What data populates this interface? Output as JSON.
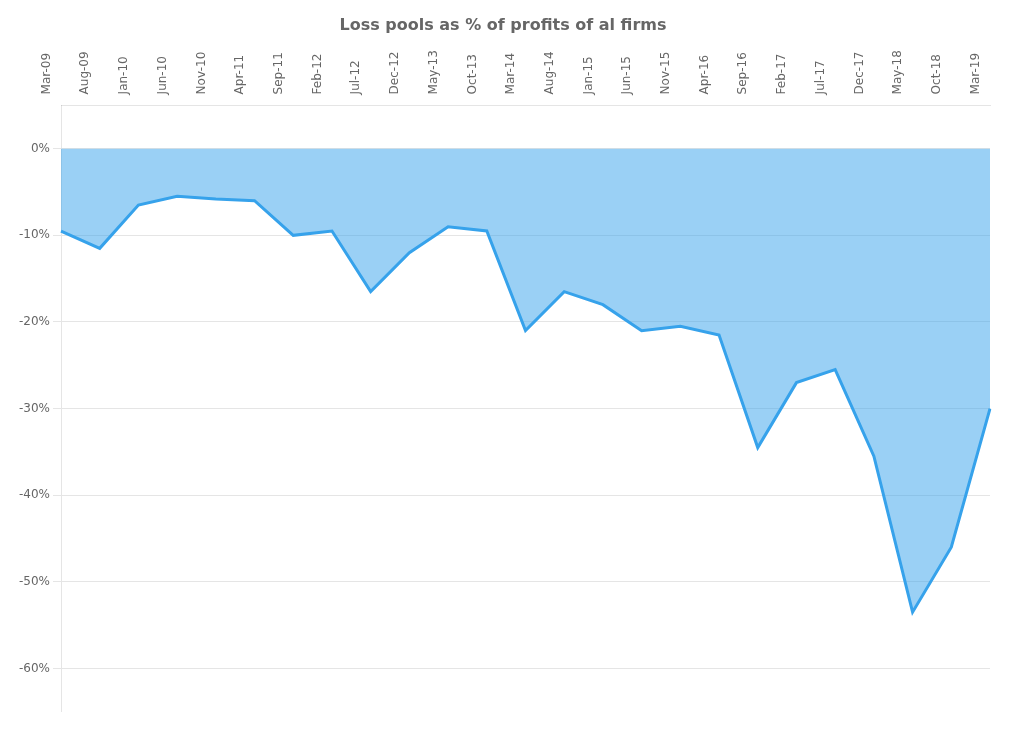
{
  "chart_data": {
    "type": "area",
    "title": "Loss pools as % of profits of al firms",
    "categories": [
      "Mar-09",
      "Aug-09",
      "Jan-10",
      "Jun-10",
      "Nov-10",
      "Apr-11",
      "Sep-11",
      "Feb-12",
      "Jul-12",
      "Dec-12",
      "May-13",
      "Oct-13",
      "Mar-14",
      "Aug-14",
      "Jan-15",
      "Jun-15",
      "Nov-15",
      "Apr-16",
      "Sep-16",
      "Feb-17",
      "Jul-17",
      "Dec-17",
      "May-18",
      "Oct-18",
      "Mar-19"
    ],
    "values": [
      -9.5,
      -11.5,
      -6.5,
      -5.5,
      -5.8,
      -6.0,
      -10.0,
      -9.5,
      -16.5,
      -12.0,
      -9.0,
      -9.5,
      -21.0,
      -16.5,
      -18.0,
      -21.0,
      -20.5,
      -21.5,
      -34.5,
      -27.0,
      -25.5,
      -35.5,
      -53.5,
      -46.0,
      -30.0
    ],
    "ylim": [
      -65,
      5
    ],
    "yticks": [
      {
        "value": 0,
        "label": "0%"
      },
      {
        "value": -10,
        "label": "-10%"
      },
      {
        "value": -20,
        "label": "-20%"
      },
      {
        "value": -30,
        "label": "-30%"
      },
      {
        "value": -40,
        "label": "-40%"
      },
      {
        "value": -50,
        "label": "-50%"
      },
      {
        "value": -60,
        "label": "-60%"
      }
    ],
    "grid": true
  }
}
